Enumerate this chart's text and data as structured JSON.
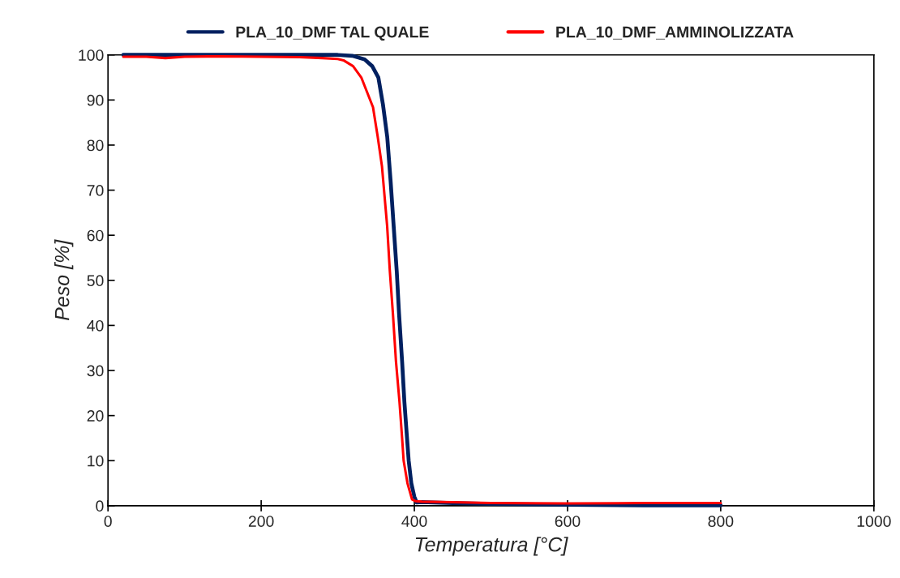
{
  "chart_data": {
    "type": "line",
    "xlabel": "Temperatura [°C]",
    "ylabel": "Peso [%]",
    "xlim": [
      0,
      1000
    ],
    "xticks": [
      0,
      200,
      400,
      600,
      800,
      1000
    ],
    "ylim": [
      0,
      100
    ],
    "yticks": [
      0,
      10,
      20,
      30,
      40,
      50,
      60,
      70,
      80,
      90,
      100
    ],
    "grid": false,
    "legend": "top",
    "marker": "none",
    "line_style": "solid",
    "series": [
      {
        "name": "PLA_10_DMF TAL QUALE",
        "color": "#002060",
        "x": [
          20,
          100,
          200,
          300,
          319,
          335,
          345,
          353,
          359,
          364.6,
          369,
          373,
          377,
          380,
          384,
          387,
          390,
          392.6,
          396,
          400,
          403,
          410,
          450,
          500,
          600,
          700,
          800
        ],
        "values": [
          100,
          100,
          100,
          100,
          99.8,
          99,
          97.5,
          95,
          89,
          81.8,
          72,
          62,
          52,
          42.6,
          32,
          23,
          16,
          10,
          5,
          2,
          0.7,
          0.8,
          0.6,
          0.4,
          0.2,
          0.1,
          0.1
        ]
      },
      {
        "name": "PLA_10_DMF_AMMINOLIZZATA",
        "color": "#ff0000",
        "x": [
          20,
          50,
          75,
          100,
          150,
          200,
          250,
          280,
          300,
          307.5,
          320,
          330.7,
          346,
          352,
          357.7,
          364.5,
          368,
          372,
          376,
          380.6,
          384,
          386,
          391,
          397,
          402,
          410,
          450,
          500,
          600,
          700,
          800
        ],
        "values": [
          99.6,
          99.6,
          99.3,
          99.6,
          99.7,
          99.6,
          99.5,
          99.3,
          99.1,
          98.8,
          97.5,
          95,
          88.4,
          82,
          75.3,
          62,
          52,
          42.6,
          32,
          23,
          15,
          10,
          5,
          1.4,
          1,
          0.9,
          0.8,
          0.6,
          0.5,
          0.6,
          0.6
        ]
      }
    ]
  }
}
